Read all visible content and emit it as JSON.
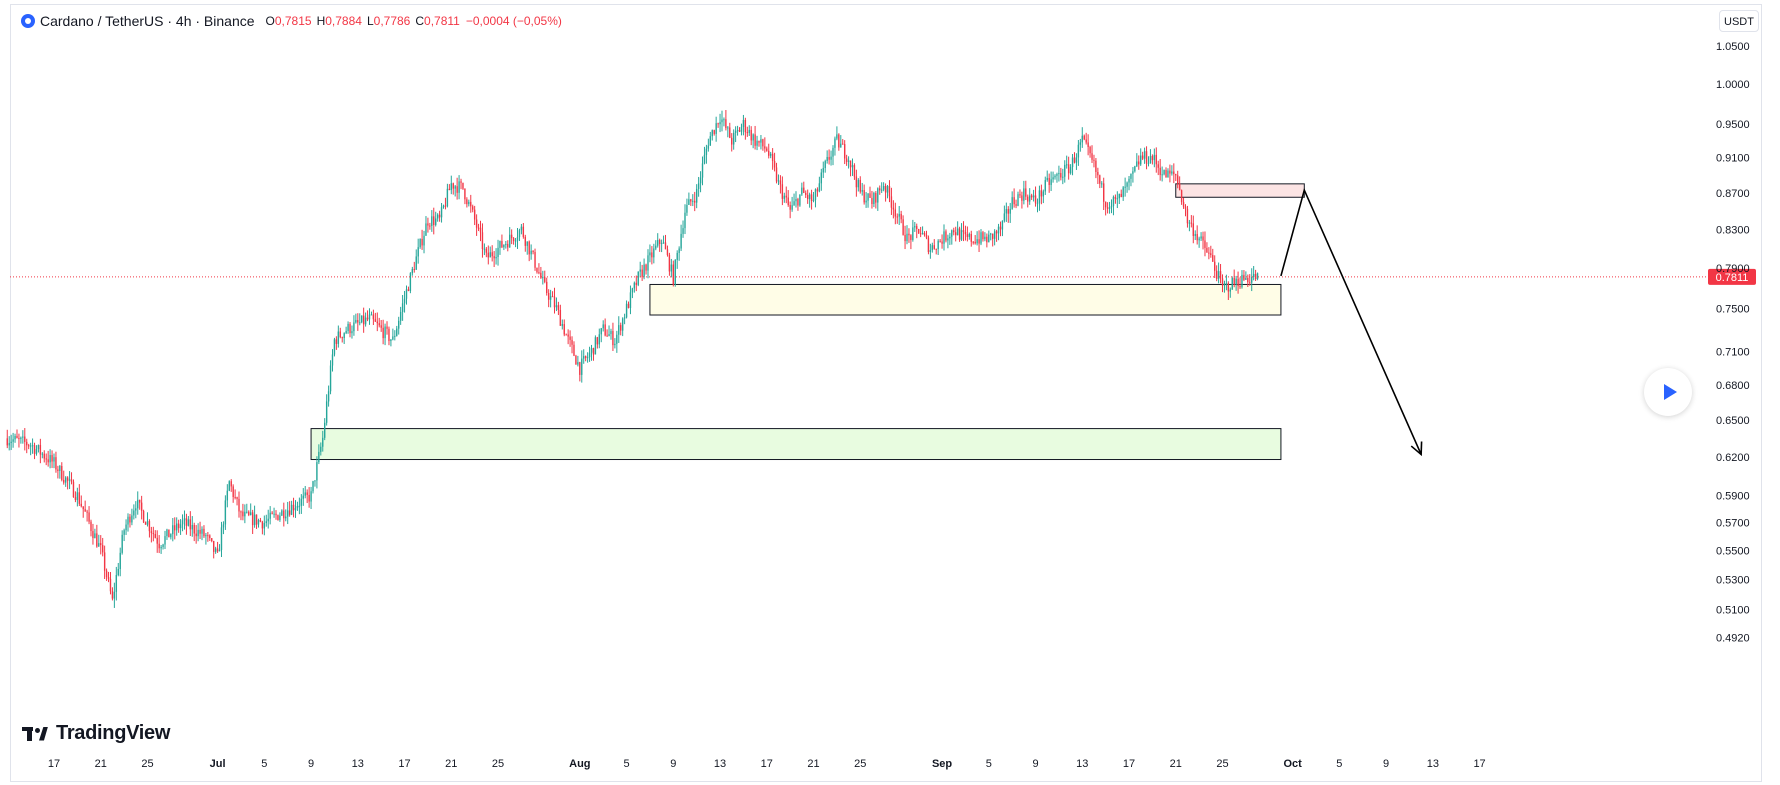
{
  "header": {
    "symbol": "Cardano / TetherUS · 4h · Binance",
    "open_label": "O",
    "open": "0,7815",
    "high_label": "H",
    "high": "0,7884",
    "low_label": "L",
    "low": "0,7786",
    "close_label": "C",
    "close": "0,7811",
    "change": "−0,0004 (−0,05%)"
  },
  "currency": "USDT",
  "branding": {
    "name": "TradingView"
  },
  "colors": {
    "up": "#26a69a",
    "down": "#f23645",
    "text": "#131722",
    "muted": "#6a6d78",
    "accent": "#2962ff",
    "price_line": "#f23645"
  },
  "chart_data": {
    "type": "candlestick",
    "interval": "4h",
    "y_scale": "log",
    "y_ticks": [
      1.05,
      1.0,
      0.95,
      0.91,
      0.87,
      0.83,
      0.79,
      0.75,
      0.71,
      0.68,
      0.65,
      0.62,
      0.59,
      0.57,
      0.55,
      0.53,
      0.51,
      0.492
    ],
    "y_tick_labels": [
      "1.0500",
      "1.0000",
      "0.9500",
      "0.9100",
      "0.8700",
      "0.8300",
      "0.7900",
      "0.7500",
      "0.7100",
      "0.6800",
      "0.6500",
      "0.6200",
      "0.5900",
      "0.5700",
      "0.5500",
      "0.5300",
      "0.5100",
      "0.4920"
    ],
    "x_tick_labels": [
      "17",
      "21",
      "25",
      "Jul",
      "5",
      "9",
      "13",
      "17",
      "21",
      "25",
      "Aug",
      "5",
      "9",
      "13",
      "17",
      "21",
      "25",
      "Sep",
      "5",
      "9",
      "13",
      "17",
      "21",
      "25",
      "Oct",
      "5",
      "9",
      "13",
      "17"
    ],
    "x_tick_dates": [
      "Jun 17",
      "Jun 21",
      "Jun 25",
      "Jul 1",
      "Jul 5",
      "Jul 9",
      "Jul 13",
      "Jul 17",
      "Jul 21",
      "Jul 25",
      "Aug 1",
      "Aug 5",
      "Aug 9",
      "Aug 13",
      "Aug 17",
      "Aug 21",
      "Aug 25",
      "Sep 1",
      "Sep 5",
      "Sep 9",
      "Sep 13",
      "Sep 17",
      "Sep 21",
      "Sep 25",
      "Oct 1",
      "Oct 5",
      "Oct 9",
      "Oct 13",
      "Oct 17"
    ],
    "last_price": "0.7811",
    "price_path_close": [
      [
        "Jun 13",
        0.635
      ],
      [
        "Jun 15",
        0.63
      ],
      [
        "Jun 17",
        0.615
      ],
      [
        "Jun 19",
        0.59
      ],
      [
        "Jun 21",
        0.55
      ],
      [
        "Jun 22",
        0.515
      ],
      [
        "Jun 23",
        0.565
      ],
      [
        "Jun 24",
        0.585
      ],
      [
        "Jun 26",
        0.555
      ],
      [
        "Jun 28",
        0.57
      ],
      [
        "Jun 30",
        0.56
      ],
      [
        "Jul 1",
        0.545
      ],
      [
        "Jul 2",
        0.6
      ],
      [
        "Jul 3",
        0.575
      ],
      [
        "Jul 5",
        0.57
      ],
      [
        "Jul 7",
        0.58
      ],
      [
        "Jul 9",
        0.59
      ],
      [
        "Jul 10",
        0.635
      ],
      [
        "Jul 11",
        0.72
      ],
      [
        "Jul 12",
        0.73
      ],
      [
        "Jul 14",
        0.74
      ],
      [
        "Jul 16",
        0.72
      ],
      [
        "Jul 17",
        0.76
      ],
      [
        "Jul 18",
        0.8
      ],
      [
        "Jul 19",
        0.84
      ],
      [
        "Jul 20",
        0.84
      ],
      [
        "Jul 21",
        0.88
      ],
      [
        "Jul 22",
        0.875
      ],
      [
        "Jul 23",
        0.84
      ],
      [
        "Jul 24",
        0.8
      ],
      [
        "Jul 26",
        0.82
      ],
      [
        "Jul 27",
        0.83
      ],
      [
        "Jul 28",
        0.8
      ],
      [
        "Jul 29",
        0.77
      ],
      [
        "Jul 30",
        0.75
      ],
      [
        "Jul 31",
        0.72
      ],
      [
        "Aug 1",
        0.695
      ],
      [
        "Aug 2",
        0.71
      ],
      [
        "Aug 3",
        0.73
      ],
      [
        "Aug 4",
        0.72
      ],
      [
        "Aug 5",
        0.75
      ],
      [
        "Aug 6",
        0.78
      ],
      [
        "Aug 7",
        0.8
      ],
      [
        "Aug 8",
        0.82
      ],
      [
        "Aug 9",
        0.78
      ],
      [
        "Aug 10",
        0.85
      ],
      [
        "Aug 11",
        0.87
      ],
      [
        "Aug 12",
        0.93
      ],
      [
        "Aug 13",
        0.96
      ],
      [
        "Aug 14",
        0.93
      ],
      [
        "Aug 15",
        0.95
      ],
      [
        "Aug 16",
        0.93
      ],
      [
        "Aug 17",
        0.92
      ],
      [
        "Aug 18",
        0.88
      ],
      [
        "Aug 19",
        0.85
      ],
      [
        "Aug 20",
        0.87
      ],
      [
        "Aug 21",
        0.86
      ],
      [
        "Aug 22",
        0.9
      ],
      [
        "Aug 23",
        0.93
      ],
      [
        "Aug 24",
        0.91
      ],
      [
        "Aug 25",
        0.87
      ],
      [
        "Aug 26",
        0.86
      ],
      [
        "Aug 27",
        0.88
      ],
      [
        "Aug 28",
        0.85
      ],
      [
        "Aug 29",
        0.82
      ],
      [
        "Aug 30",
        0.83
      ],
      [
        "Aug 31",
        0.81
      ],
      [
        "Sep 2",
        0.83
      ],
      [
        "Sep 3",
        0.82
      ],
      [
        "Sep 5",
        0.82
      ],
      [
        "Sep 6",
        0.83
      ],
      [
        "Sep 7",
        0.86
      ],
      [
        "Sep 8",
        0.87
      ],
      [
        "Sep 9",
        0.86
      ],
      [
        "Sep 10",
        0.88
      ],
      [
        "Sep 11",
        0.89
      ],
      [
        "Sep 12",
        0.9
      ],
      [
        "Sep 13",
        0.93
      ],
      [
        "Sep 14",
        0.9
      ],
      [
        "Sep 15",
        0.86
      ],
      [
        "Sep 16",
        0.86
      ],
      [
        "Sep 17",
        0.88
      ],
      [
        "Sep 18",
        0.91
      ],
      [
        "Sep 19",
        0.91
      ],
      [
        "Sep 20",
        0.89
      ],
      [
        "Sep 21",
        0.89
      ],
      [
        "Sep 22",
        0.84
      ],
      [
        "Sep 23",
        0.82
      ],
      [
        "Sep 24",
        0.8
      ],
      [
        "Sep 25",
        0.77
      ],
      [
        "Sep 26",
        0.775
      ],
      [
        "Sep 27",
        0.78
      ],
      [
        "Sep 28",
        0.781
      ]
    ],
    "zones": [
      {
        "kind": "supply",
        "y_range": [
          0.865,
          0.88
        ],
        "x_range": [
          "Sep 21",
          "Oct 2"
        ],
        "color": "#fce4e4"
      },
      {
        "kind": "demand",
        "y_range": [
          0.7438,
          0.7735
        ],
        "x_range": [
          "Aug 7",
          "Sep 30"
        ],
        "color": "#fffde7"
      },
      {
        "kind": "demand",
        "y_range": [
          0.618,
          0.643
        ],
        "x_range": [
          "Jul 9",
          "Sep 30"
        ],
        "color": "#e8fce0"
      }
    ],
    "projection": [
      [
        "Sep 30",
        0.782
      ],
      [
        "Oct 2",
        0.873
      ],
      [
        "Oct 12",
        0.622
      ]
    ],
    "grid": false,
    "legend": "none"
  }
}
